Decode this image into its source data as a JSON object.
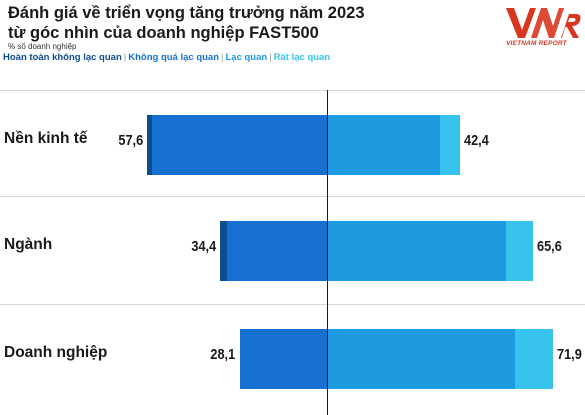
{
  "header": {
    "title_line1": "Đánh giá về triển vọng tăng trưởng năm 2023",
    "title_line2": "từ góc nhìn của doanh nghiệp FAST500",
    "unit_note": "% số doanh nghiệp"
  },
  "legend": {
    "items": [
      {
        "label": "Hoàn toàn không lạc quan",
        "color": "#0d4c91"
      },
      {
        "label": "Không quá lạc quan",
        "color": "#1670cf"
      },
      {
        "label": "Lạc quan",
        "color": "#1e9be0"
      },
      {
        "label": "Rất lạc quan",
        "color": "#37c3ee"
      }
    ],
    "separator": "|"
  },
  "logo": {
    "text": "VNR",
    "caption": "VIETNAM REPORT",
    "color": "#d9361f"
  },
  "chart_data": {
    "type": "bar",
    "orientation": "horizontal-diverging",
    "title": "Đánh giá về triển vọng tăng trưởng năm 2023 từ góc nhìn của doanh nghiệp FAST500",
    "unit": "% số doanh nghiệp",
    "categories": [
      "Nền kinh tế",
      "Ngành",
      "Doanh nghiệp"
    ],
    "series": [
      {
        "name": "Hoàn toàn không lạc quan",
        "side": "left",
        "color": "#0d4c91",
        "values": [
          1.6,
          2.3,
          0
        ]
      },
      {
        "name": "Không quá lạc quan",
        "side": "left",
        "color": "#1670cf",
        "values": [
          56.0,
          32.1,
          28.1
        ]
      },
      {
        "name": "Lạc quan",
        "side": "right",
        "color": "#1e9be0",
        "values": [
          35.8,
          57.1,
          59.9
        ]
      },
      {
        "name": "Rất lạc quan",
        "side": "right",
        "color": "#37c3ee",
        "values": [
          6.6,
          8.5,
          12.0
        ]
      }
    ],
    "left_totals": [
      57.6,
      34.4,
      28.1
    ],
    "right_totals": [
      42.4,
      65.6,
      71.9
    ],
    "left_total_labels": [
      "57,6",
      "34,4",
      "28,1"
    ],
    "right_total_labels": [
      "42,4",
      "65,6",
      "71,9"
    ],
    "xlim": [
      -60,
      75
    ],
    "grid": true,
    "legend_position": "top-left"
  }
}
